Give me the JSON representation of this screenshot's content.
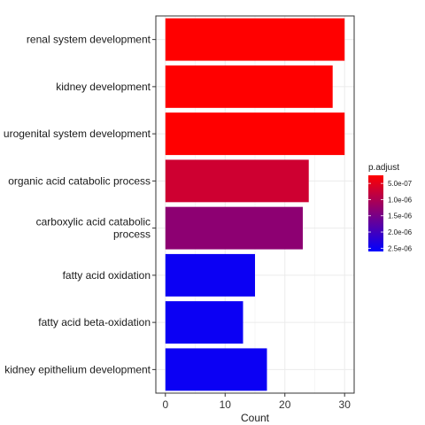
{
  "chart_data": {
    "type": "bar",
    "orientation": "horizontal",
    "title": "",
    "xlabel": "Count",
    "ylabel": "",
    "xlim": [
      -1.6,
      31.6
    ],
    "xticks": [
      0,
      10,
      20,
      30
    ],
    "grid": true,
    "categories": [
      [
        "renal system development"
      ],
      [
        "kidney development"
      ],
      [
        "urogenital system development"
      ],
      [
        "organic acid catabolic process"
      ],
      [
        "carboxylic acid catabolic",
        "process"
      ],
      [
        "fatty acid oxidation"
      ],
      [
        "fatty acid beta-oxidation"
      ],
      [
        "kidney epithelium development"
      ]
    ],
    "values": [
      30,
      28,
      30,
      24,
      23,
      15,
      13,
      17
    ],
    "p_adjust": [
      1e-07,
      1e-07,
      1e-07,
      7e-07,
      1.3e-06,
      2.5e-06,
      2.5e-06,
      2.5e-06
    ],
    "legend": {
      "title": "p.adjust",
      "position": "right",
      "range": [
        2.5e-07,
        2.6e-06
      ],
      "ticks": [
        5e-07,
        1e-06,
        1.5e-06,
        2e-06,
        2.5e-06
      ],
      "tick_labels": [
        "5.0e-07",
        "1.0e-06",
        "1.5e-06",
        "2.0e-06",
        "2.5e-06"
      ],
      "low_color": "#FF0000",
      "high_color": "#0000FF"
    },
    "colors": {
      "panel_border": "#333333",
      "grid_major": "#EBEBEB",
      "grid_minor": "#F5F5F5",
      "background": "#FFFFFF"
    }
  }
}
